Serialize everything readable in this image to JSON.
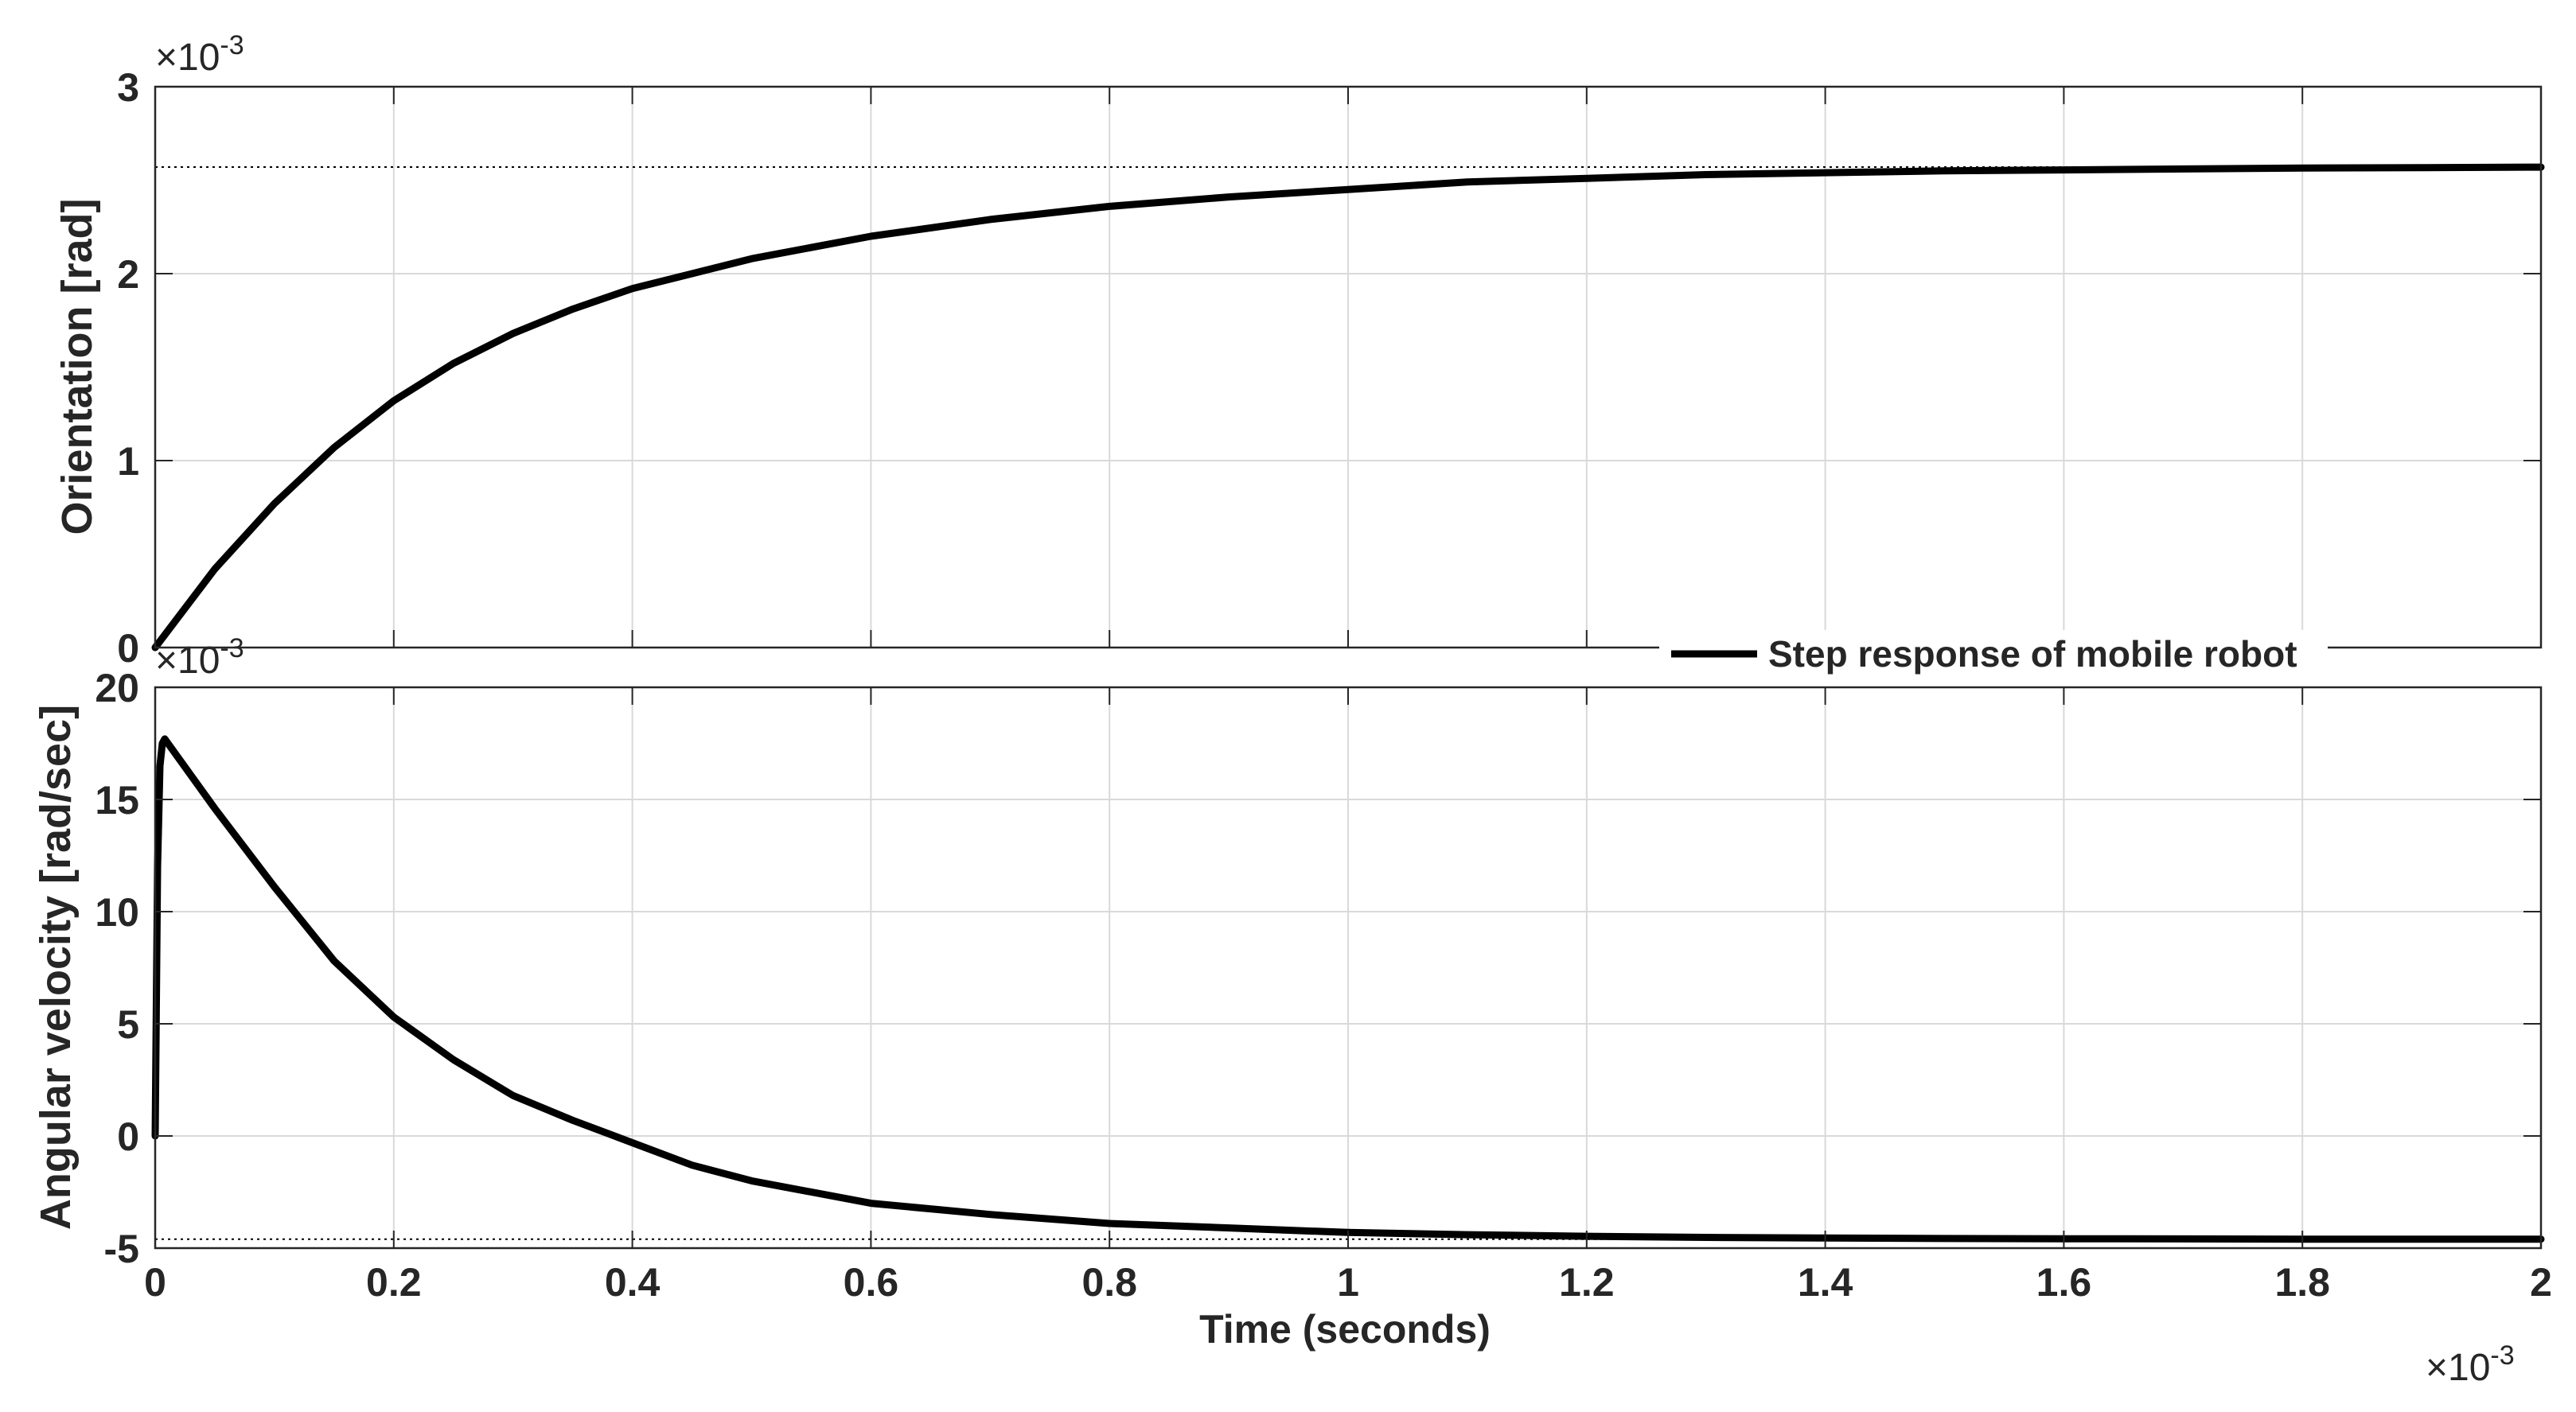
{
  "legend": {
    "label": "Step response of mobile robot",
    "placement": "between panels, right"
  },
  "colors": {
    "line": "#000000",
    "grid": "#d9d9d9",
    "axis": "#262626",
    "text": "#262626"
  },
  "chart_data": [
    {
      "type": "line",
      "title": "",
      "xlabel": "",
      "ylabel": "Orientation [rad]",
      "y_exponent_label": "×10",
      "y_exponent_power": "-3",
      "xlim": [
        0,
        2
      ],
      "ylim": [
        0,
        3
      ],
      "x_ticks": [
        0,
        0.2,
        0.4,
        0.6,
        0.8,
        1,
        1.2,
        1.4,
        1.6,
        1.8,
        2
      ],
      "y_ticks": [
        0,
        1,
        2,
        3
      ],
      "y_tick_labels": [
        "0",
        "1",
        "2",
        "3"
      ],
      "grid": true,
      "final_value_reference": 2.57,
      "series": [
        {
          "name": "Step response of mobile robot",
          "x": [
            0,
            0.05,
            0.1,
            0.15,
            0.2,
            0.25,
            0.3,
            0.35,
            0.4,
            0.45,
            0.5,
            0.6,
            0.7,
            0.8,
            0.9,
            1.0,
            1.1,
            1.2,
            1.3,
            1.4,
            1.5,
            1.6,
            1.7,
            1.8,
            1.9,
            2.0
          ],
          "y": [
            0,
            0.42,
            0.77,
            1.07,
            1.32,
            1.52,
            1.68,
            1.81,
            1.92,
            2.0,
            2.08,
            2.2,
            2.29,
            2.36,
            2.41,
            2.45,
            2.49,
            2.51,
            2.53,
            2.54,
            2.55,
            2.555,
            2.56,
            2.565,
            2.567,
            2.57
          ]
        }
      ]
    },
    {
      "type": "line",
      "title": "",
      "xlabel": "Time (seconds)",
      "ylabel": "Angular velocity [rad/sec]",
      "y_exponent_label": "×10",
      "y_exponent_power": "-3",
      "x_exponent_label": "×10",
      "x_exponent_power": "-3",
      "xlim": [
        0,
        2
      ],
      "ylim": [
        -5,
        20
      ],
      "x_ticks": [
        0,
        0.2,
        0.4,
        0.6,
        0.8,
        1,
        1.2,
        1.4,
        1.6,
        1.8,
        2
      ],
      "x_tick_labels": [
        "0",
        "0.2",
        "0.4",
        "0.6",
        "0.8",
        "1",
        "1.2",
        "1.4",
        "1.6",
        "1.8",
        "2"
      ],
      "y_ticks": [
        -5,
        0,
        5,
        10,
        15,
        20
      ],
      "y_tick_labels": [
        "-5",
        "0",
        "5",
        "10",
        "15",
        "20"
      ],
      "grid": true,
      "final_value_reference": -4.6,
      "series": [
        {
          "name": "Step response of mobile robot",
          "x": [
            0,
            0.002,
            0.004,
            0.006,
            0.008,
            0.05,
            0.1,
            0.15,
            0.2,
            0.25,
            0.3,
            0.35,
            0.4,
            0.45,
            0.5,
            0.6,
            0.7,
            0.8,
            0.9,
            1.0,
            1.1,
            1.2,
            1.3,
            1.4,
            1.5,
            1.6,
            1.7,
            1.8,
            1.9,
            2.0
          ],
          "y": [
            0,
            12,
            16.5,
            17.5,
            17.7,
            14.6,
            11.1,
            7.8,
            5.3,
            3.4,
            1.8,
            0.7,
            -0.3,
            -1.3,
            -2.0,
            -3.0,
            -3.5,
            -3.9,
            -4.1,
            -4.3,
            -4.4,
            -4.47,
            -4.52,
            -4.55,
            -4.57,
            -4.58,
            -4.59,
            -4.6,
            -4.6,
            -4.6
          ]
        }
      ]
    }
  ]
}
